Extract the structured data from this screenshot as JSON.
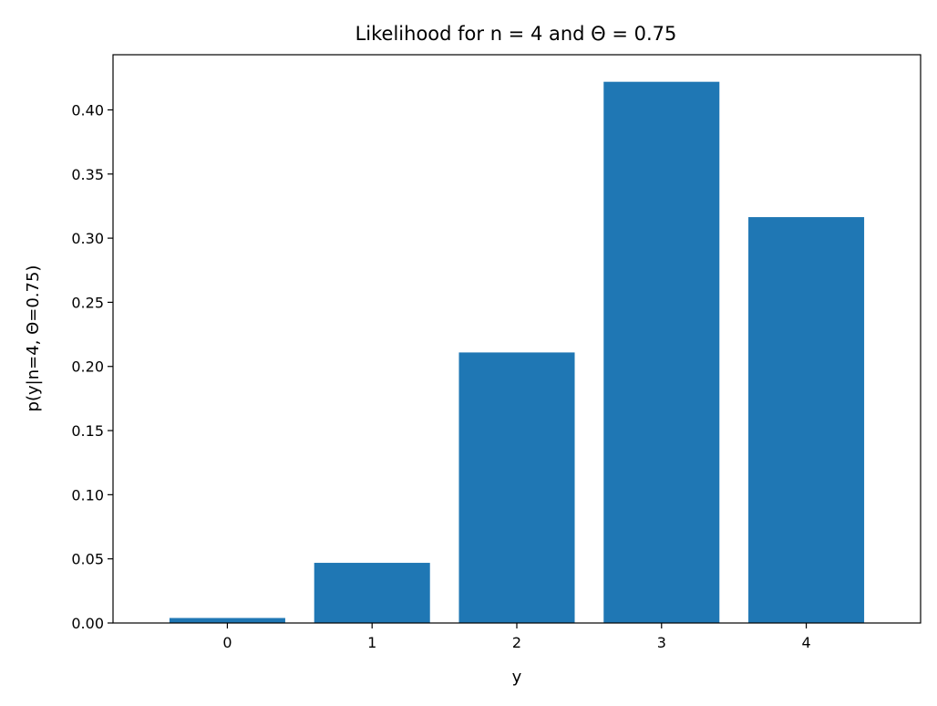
{
  "chart_data": {
    "type": "bar",
    "title": "Likelihood for n = 4 and Θ = 0.75",
    "xlabel": "y",
    "ylabel": "p(y|n=4, Θ=0.75)",
    "categories": [
      "0",
      "1",
      "2",
      "3",
      "4"
    ],
    "values": [
      0.0039,
      0.0469,
      0.2109,
      0.4219,
      0.3164
    ],
    "ylim": [
      0,
      0.443
    ],
    "yticks": [
      0.0,
      0.05,
      0.1,
      0.15,
      0.2,
      0.25,
      0.3,
      0.35,
      0.4
    ],
    "ytick_labels": [
      "0.00",
      "0.05",
      "0.10",
      "0.15",
      "0.20",
      "0.25",
      "0.30",
      "0.35",
      "0.40"
    ],
    "grid": false,
    "bar_color": "#1f77b4"
  }
}
